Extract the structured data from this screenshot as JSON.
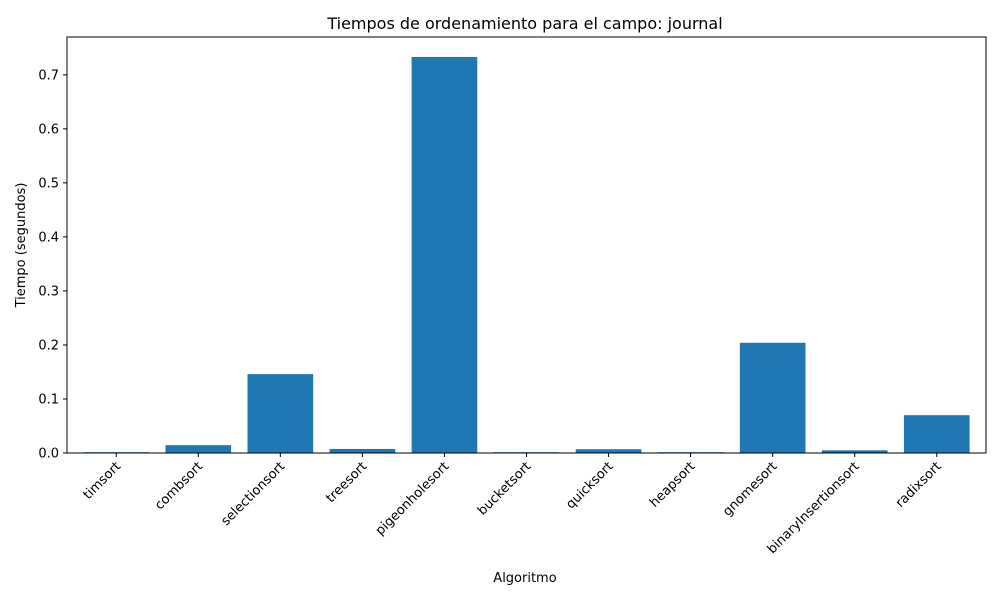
{
  "chart_data": {
    "type": "bar",
    "title": "Tiempos de ordenamiento para el campo: journal",
    "xlabel": "Algoritmo",
    "ylabel": "Tiempo (segundos)",
    "categories": [
      "timsort",
      "combsort",
      "selectionsort",
      "treesort",
      "pigeonholesort",
      "bucketsort",
      "quicksort",
      "heapsort",
      "gnomesort",
      "binaryInsertionsort",
      "radixsort"
    ],
    "values": [
      0.0015,
      0.0145,
      0.146,
      0.0075,
      0.733,
      0.0015,
      0.007,
      0.0015,
      0.204,
      0.005,
      0.07
    ],
    "ylim": [
      0,
      0.77
    ],
    "yticks": [
      0.0,
      0.1,
      0.2,
      0.3,
      0.4,
      0.5,
      0.6,
      0.7
    ],
    "ytick_labels": [
      "0.0",
      "0.1",
      "0.2",
      "0.3",
      "0.4",
      "0.5",
      "0.6",
      "0.7"
    ],
    "bar_color": "#1f77b4",
    "grid": false,
    "legend": false
  }
}
